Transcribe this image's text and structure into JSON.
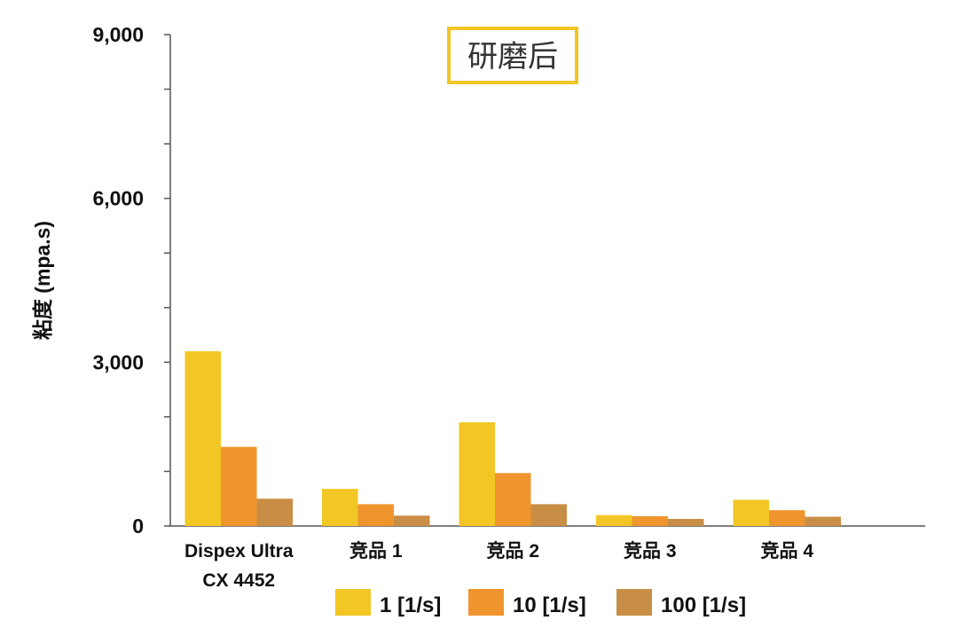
{
  "chart_data": {
    "type": "bar",
    "title": "研磨后",
    "ylabel": "粘度 (mpa.s)",
    "xlabel": "",
    "ylim": [
      0,
      9000
    ],
    "yticks": [
      0,
      3000,
      6000,
      9000
    ],
    "ytick_labels": [
      "0",
      "3,000",
      "6,000",
      "9,000"
    ],
    "categories": [
      [
        "Dispex Ultra",
        "CX 4452"
      ],
      [
        "竞品 1"
      ],
      [
        "竞品 2"
      ],
      [
        "竞品 3"
      ],
      [
        "竞品 4"
      ]
    ],
    "series": [
      {
        "name": "1 [1/s]",
        "color": "#F2C624",
        "values": [
          3200,
          680,
          1900,
          200,
          480
        ]
      },
      {
        "name": "10 [1/s]",
        "color": "#F0952E",
        "values": [
          1450,
          400,
          970,
          180,
          290
        ]
      },
      {
        "name": "100 [1/s]",
        "color": "#C98E45",
        "values": [
          500,
          190,
          400,
          130,
          170
        ]
      }
    ],
    "legend_position": "bottom",
    "title_border_color": "#F2C624",
    "grid": false
  }
}
